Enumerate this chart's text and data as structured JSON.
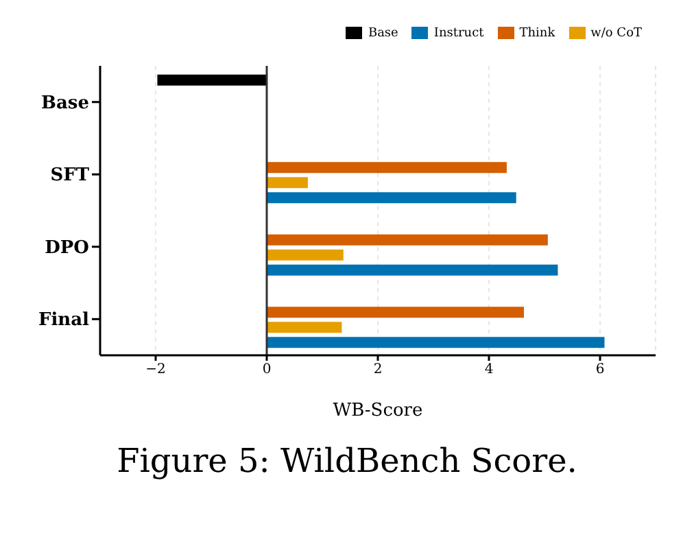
{
  "chart_data": {
    "type": "bar",
    "orientation": "horizontal",
    "xlabel": "WB-Score",
    "categories": [
      "Base",
      "SFT",
      "DPO",
      "Final"
    ],
    "series": [
      {
        "name": "Base",
        "color": "#000000",
        "values": [
          -1.97,
          null,
          null,
          null
        ]
      },
      {
        "name": "Think",
        "color": "#d55e00",
        "values": [
          null,
          4.32,
          5.06,
          4.63
        ]
      },
      {
        "name": "w/o CoT",
        "color": "#e69f00",
        "values": [
          null,
          0.74,
          1.38,
          1.35
        ]
      },
      {
        "name": "Instruct",
        "color": "#0072b2",
        "values": [
          null,
          4.49,
          5.24,
          6.08
        ]
      }
    ],
    "xlim": [
      -3,
      7
    ],
    "xticks": [
      -2,
      0,
      2,
      4,
      6
    ],
    "grid": "x",
    "legend": "top right",
    "ref_lines": [
      {
        "axis": "x",
        "value": 0,
        "color": "#333333"
      }
    ],
    "annotations": [
      "Figure 5: WildBench Score."
    ]
  }
}
